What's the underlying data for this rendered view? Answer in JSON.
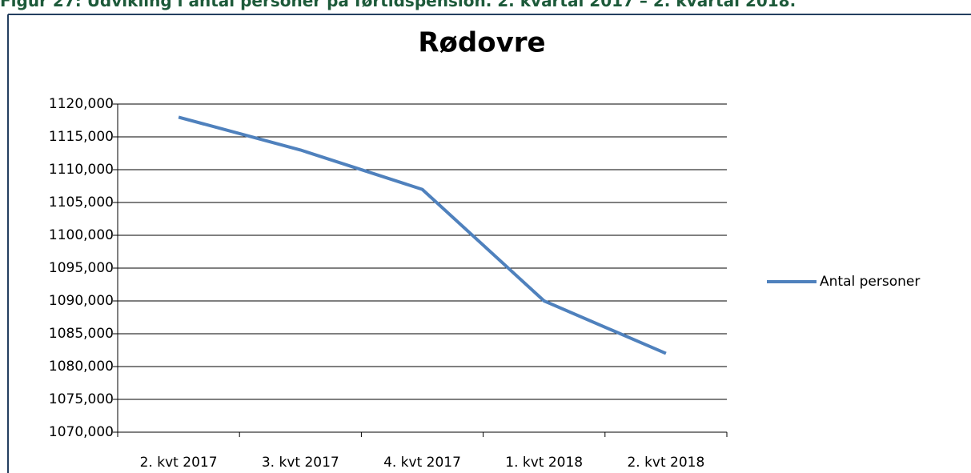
{
  "heading": "Figur 27: Udvikling i antal personer på førtidspension. 2. kvartal 2017 – 2. kvartal 2018.",
  "chart_data": {
    "type": "line",
    "title": "Rødovre",
    "categories": [
      "2. kvt 2017",
      "3. kvt 2017",
      "4. kvt 2017",
      "1. kvt 2018",
      "2. kvt 2018"
    ],
    "series": [
      {
        "name": "Antal personer",
        "color": "#4f81bd",
        "values": [
          1118,
          1113,
          1107,
          1090,
          1082
        ]
      }
    ],
    "ylim": [
      1070,
      1120
    ],
    "yticks": [
      {
        "value": 1070,
        "label": "1070,000"
      },
      {
        "value": 1075,
        "label": "1075,000"
      },
      {
        "value": 1080,
        "label": "1080,000"
      },
      {
        "value": 1085,
        "label": "1085,000"
      },
      {
        "value": 1090,
        "label": "1090,000"
      },
      {
        "value": 1095,
        "label": "1095,000"
      },
      {
        "value": 1100,
        "label": "1100,000"
      },
      {
        "value": 1105,
        "label": "1105,000"
      },
      {
        "value": 1110,
        "label": "1110,000"
      },
      {
        "value": 1115,
        "label": "1115,000"
      },
      {
        "value": 1120,
        "label": "1120,000"
      }
    ],
    "grid": true,
    "legend": "right"
  }
}
